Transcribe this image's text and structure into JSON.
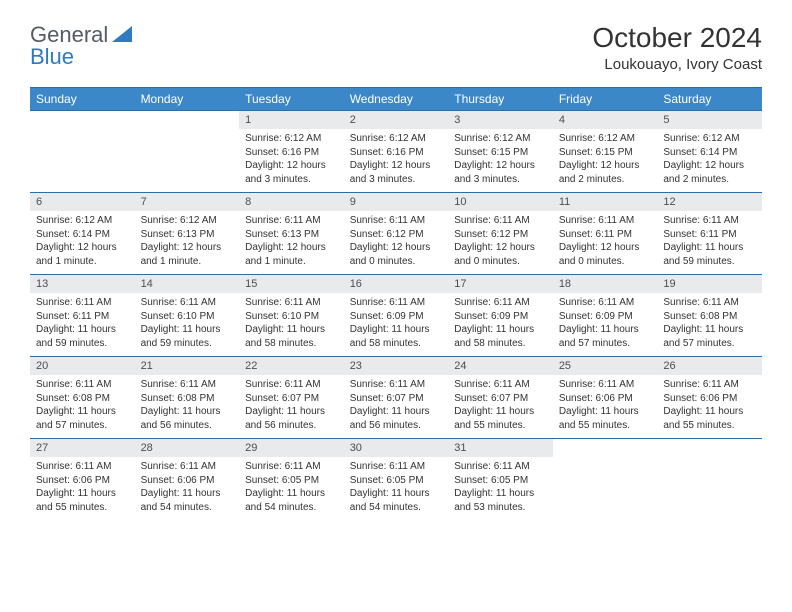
{
  "brand": {
    "part1": "General",
    "part2": "Blue"
  },
  "title": "October 2024",
  "location": "Loukouayo, Ivory Coast",
  "styling": {
    "header_bg": "#3c87c7",
    "header_border": "#2a6da8",
    "daynum_bg": "#e9eaec",
    "page_bg": "#ffffff",
    "text_color": "#333333",
    "logo_gray": "#555c63",
    "logo_blue": "#2f7ac0",
    "month_title_fontsize": 28,
    "location_fontsize": 15,
    "dayheader_fontsize": 12,
    "daynum_fontsize": 11,
    "daybody_fontsize": 10
  },
  "day_headers": [
    "Sunday",
    "Monday",
    "Tuesday",
    "Wednesday",
    "Thursday",
    "Friday",
    "Saturday"
  ],
  "weeks": [
    [
      {
        "n": "",
        "sr": "",
        "ss": "",
        "dl": ""
      },
      {
        "n": "",
        "sr": "",
        "ss": "",
        "dl": ""
      },
      {
        "n": "1",
        "sr": "Sunrise: 6:12 AM",
        "ss": "Sunset: 6:16 PM",
        "dl": "Daylight: 12 hours and 3 minutes."
      },
      {
        "n": "2",
        "sr": "Sunrise: 6:12 AM",
        "ss": "Sunset: 6:16 PM",
        "dl": "Daylight: 12 hours and 3 minutes."
      },
      {
        "n": "3",
        "sr": "Sunrise: 6:12 AM",
        "ss": "Sunset: 6:15 PM",
        "dl": "Daylight: 12 hours and 3 minutes."
      },
      {
        "n": "4",
        "sr": "Sunrise: 6:12 AM",
        "ss": "Sunset: 6:15 PM",
        "dl": "Daylight: 12 hours and 2 minutes."
      },
      {
        "n": "5",
        "sr": "Sunrise: 6:12 AM",
        "ss": "Sunset: 6:14 PM",
        "dl": "Daylight: 12 hours and 2 minutes."
      }
    ],
    [
      {
        "n": "6",
        "sr": "Sunrise: 6:12 AM",
        "ss": "Sunset: 6:14 PM",
        "dl": "Daylight: 12 hours and 1 minute."
      },
      {
        "n": "7",
        "sr": "Sunrise: 6:12 AM",
        "ss": "Sunset: 6:13 PM",
        "dl": "Daylight: 12 hours and 1 minute."
      },
      {
        "n": "8",
        "sr": "Sunrise: 6:11 AM",
        "ss": "Sunset: 6:13 PM",
        "dl": "Daylight: 12 hours and 1 minute."
      },
      {
        "n": "9",
        "sr": "Sunrise: 6:11 AM",
        "ss": "Sunset: 6:12 PM",
        "dl": "Daylight: 12 hours and 0 minutes."
      },
      {
        "n": "10",
        "sr": "Sunrise: 6:11 AM",
        "ss": "Sunset: 6:12 PM",
        "dl": "Daylight: 12 hours and 0 minutes."
      },
      {
        "n": "11",
        "sr": "Sunrise: 6:11 AM",
        "ss": "Sunset: 6:11 PM",
        "dl": "Daylight: 12 hours and 0 minutes."
      },
      {
        "n": "12",
        "sr": "Sunrise: 6:11 AM",
        "ss": "Sunset: 6:11 PM",
        "dl": "Daylight: 11 hours and 59 minutes."
      }
    ],
    [
      {
        "n": "13",
        "sr": "Sunrise: 6:11 AM",
        "ss": "Sunset: 6:11 PM",
        "dl": "Daylight: 11 hours and 59 minutes."
      },
      {
        "n": "14",
        "sr": "Sunrise: 6:11 AM",
        "ss": "Sunset: 6:10 PM",
        "dl": "Daylight: 11 hours and 59 minutes."
      },
      {
        "n": "15",
        "sr": "Sunrise: 6:11 AM",
        "ss": "Sunset: 6:10 PM",
        "dl": "Daylight: 11 hours and 58 minutes."
      },
      {
        "n": "16",
        "sr": "Sunrise: 6:11 AM",
        "ss": "Sunset: 6:09 PM",
        "dl": "Daylight: 11 hours and 58 minutes."
      },
      {
        "n": "17",
        "sr": "Sunrise: 6:11 AM",
        "ss": "Sunset: 6:09 PM",
        "dl": "Daylight: 11 hours and 58 minutes."
      },
      {
        "n": "18",
        "sr": "Sunrise: 6:11 AM",
        "ss": "Sunset: 6:09 PM",
        "dl": "Daylight: 11 hours and 57 minutes."
      },
      {
        "n": "19",
        "sr": "Sunrise: 6:11 AM",
        "ss": "Sunset: 6:08 PM",
        "dl": "Daylight: 11 hours and 57 minutes."
      }
    ],
    [
      {
        "n": "20",
        "sr": "Sunrise: 6:11 AM",
        "ss": "Sunset: 6:08 PM",
        "dl": "Daylight: 11 hours and 57 minutes."
      },
      {
        "n": "21",
        "sr": "Sunrise: 6:11 AM",
        "ss": "Sunset: 6:08 PM",
        "dl": "Daylight: 11 hours and 56 minutes."
      },
      {
        "n": "22",
        "sr": "Sunrise: 6:11 AM",
        "ss": "Sunset: 6:07 PM",
        "dl": "Daylight: 11 hours and 56 minutes."
      },
      {
        "n": "23",
        "sr": "Sunrise: 6:11 AM",
        "ss": "Sunset: 6:07 PM",
        "dl": "Daylight: 11 hours and 56 minutes."
      },
      {
        "n": "24",
        "sr": "Sunrise: 6:11 AM",
        "ss": "Sunset: 6:07 PM",
        "dl": "Daylight: 11 hours and 55 minutes."
      },
      {
        "n": "25",
        "sr": "Sunrise: 6:11 AM",
        "ss": "Sunset: 6:06 PM",
        "dl": "Daylight: 11 hours and 55 minutes."
      },
      {
        "n": "26",
        "sr": "Sunrise: 6:11 AM",
        "ss": "Sunset: 6:06 PM",
        "dl": "Daylight: 11 hours and 55 minutes."
      }
    ],
    [
      {
        "n": "27",
        "sr": "Sunrise: 6:11 AM",
        "ss": "Sunset: 6:06 PM",
        "dl": "Daylight: 11 hours and 55 minutes."
      },
      {
        "n": "28",
        "sr": "Sunrise: 6:11 AM",
        "ss": "Sunset: 6:06 PM",
        "dl": "Daylight: 11 hours and 54 minutes."
      },
      {
        "n": "29",
        "sr": "Sunrise: 6:11 AM",
        "ss": "Sunset: 6:05 PM",
        "dl": "Daylight: 11 hours and 54 minutes."
      },
      {
        "n": "30",
        "sr": "Sunrise: 6:11 AM",
        "ss": "Sunset: 6:05 PM",
        "dl": "Daylight: 11 hours and 54 minutes."
      },
      {
        "n": "31",
        "sr": "Sunrise: 6:11 AM",
        "ss": "Sunset: 6:05 PM",
        "dl": "Daylight: 11 hours and 53 minutes."
      },
      {
        "n": "",
        "sr": "",
        "ss": "",
        "dl": ""
      },
      {
        "n": "",
        "sr": "",
        "ss": "",
        "dl": ""
      }
    ]
  ]
}
